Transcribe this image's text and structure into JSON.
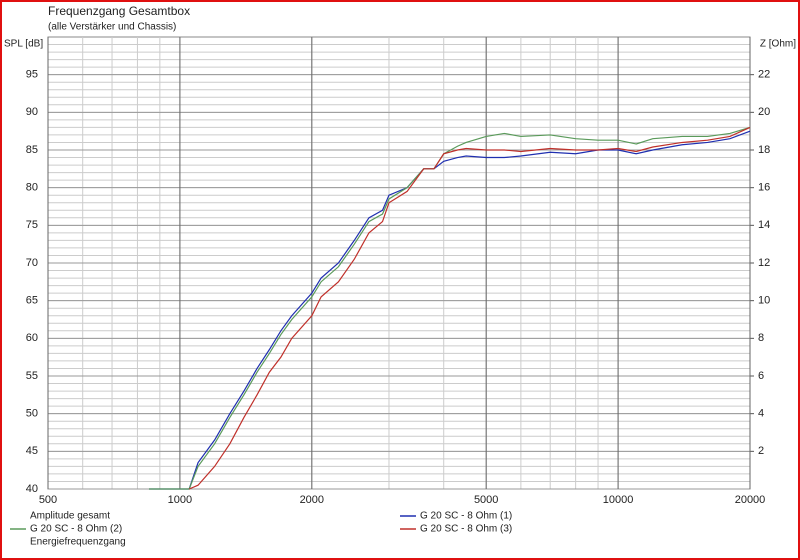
{
  "chart_data": {
    "type": "line",
    "title": "Frequenzgang Gesamtbox",
    "subtitle": "(alle Verstärker und Chassis)",
    "y_label": "SPL [dB]",
    "y2_label": "Z [Ohm]",
    "log_x": true,
    "grid": true,
    "x": [
      850,
      1000,
      1050,
      1100,
      1200,
      1300,
      1400,
      1500,
      1600,
      1700,
      1800,
      2000,
      2100,
      2300,
      2500,
      2700,
      2900,
      3000,
      3300,
      3600,
      3800,
      4000,
      4300,
      4500,
      5000,
      5500,
      6000,
      7000,
      8000,
      9000,
      10000,
      11000,
      12000,
      14000,
      16000,
      18000,
      20000
    ],
    "series": [
      {
        "name": "G 20 SC - 8 Ohm (1)",
        "color": "#1f2fb0",
        "values": [
          40,
          40,
          40,
          43.5,
          46.5,
          50,
          53,
          56,
          58.5,
          61,
          63,
          66,
          68,
          70,
          73,
          76,
          77,
          79,
          80,
          82.5,
          82.5,
          83.5,
          84,
          84.2,
          84,
          84,
          84.2,
          84.7,
          84.5,
          85,
          85,
          84.5,
          85,
          85.7,
          86,
          86.5,
          87.5
        ]
      },
      {
        "name": "G 20 SC - 8 Ohm (2)",
        "color": "#5a9a5a",
        "values": [
          40,
          40,
          40,
          43,
          46,
          49.5,
          52.5,
          55.5,
          58,
          60.5,
          62.5,
          65.5,
          67.5,
          69.5,
          72.5,
          75.5,
          76.5,
          78.5,
          80,
          82.5,
          82.5,
          84.5,
          85.5,
          86,
          86.8,
          87.2,
          86.8,
          87,
          86.5,
          86.3,
          86.3,
          85.8,
          86.5,
          86.8,
          86.8,
          87.2,
          88
        ]
      },
      {
        "name": "G 20 SC - 8 Ohm (3)",
        "color": "#c0302a",
        "values": [
          null,
          null,
          40,
          40.5,
          43,
          46,
          49.5,
          52.5,
          55.5,
          57.5,
          60,
          63,
          65.5,
          67.5,
          70.5,
          74,
          75.5,
          78,
          79.5,
          82.5,
          82.5,
          84.5,
          85,
          85.2,
          85,
          85,
          84.8,
          85.2,
          85,
          85,
          85.2,
          84.8,
          85.4,
          86,
          86.3,
          86.8,
          88
        ]
      }
    ],
    "legend_texts": [
      "Amplitude gesamt",
      "Energiefrequenzgang"
    ],
    "xlim": [
      500,
      20000
    ],
    "xticks": [
      500,
      1000,
      2000,
      5000,
      10000,
      20000
    ],
    "ylim": [
      40,
      100
    ],
    "yticks": [
      40,
      45,
      50,
      55,
      60,
      65,
      70,
      75,
      80,
      85,
      90,
      95
    ],
    "y2lim": [
      0,
      24
    ],
    "y2ticks": [
      2,
      4,
      6,
      8,
      10,
      12,
      14,
      16,
      18,
      20,
      22
    ]
  }
}
